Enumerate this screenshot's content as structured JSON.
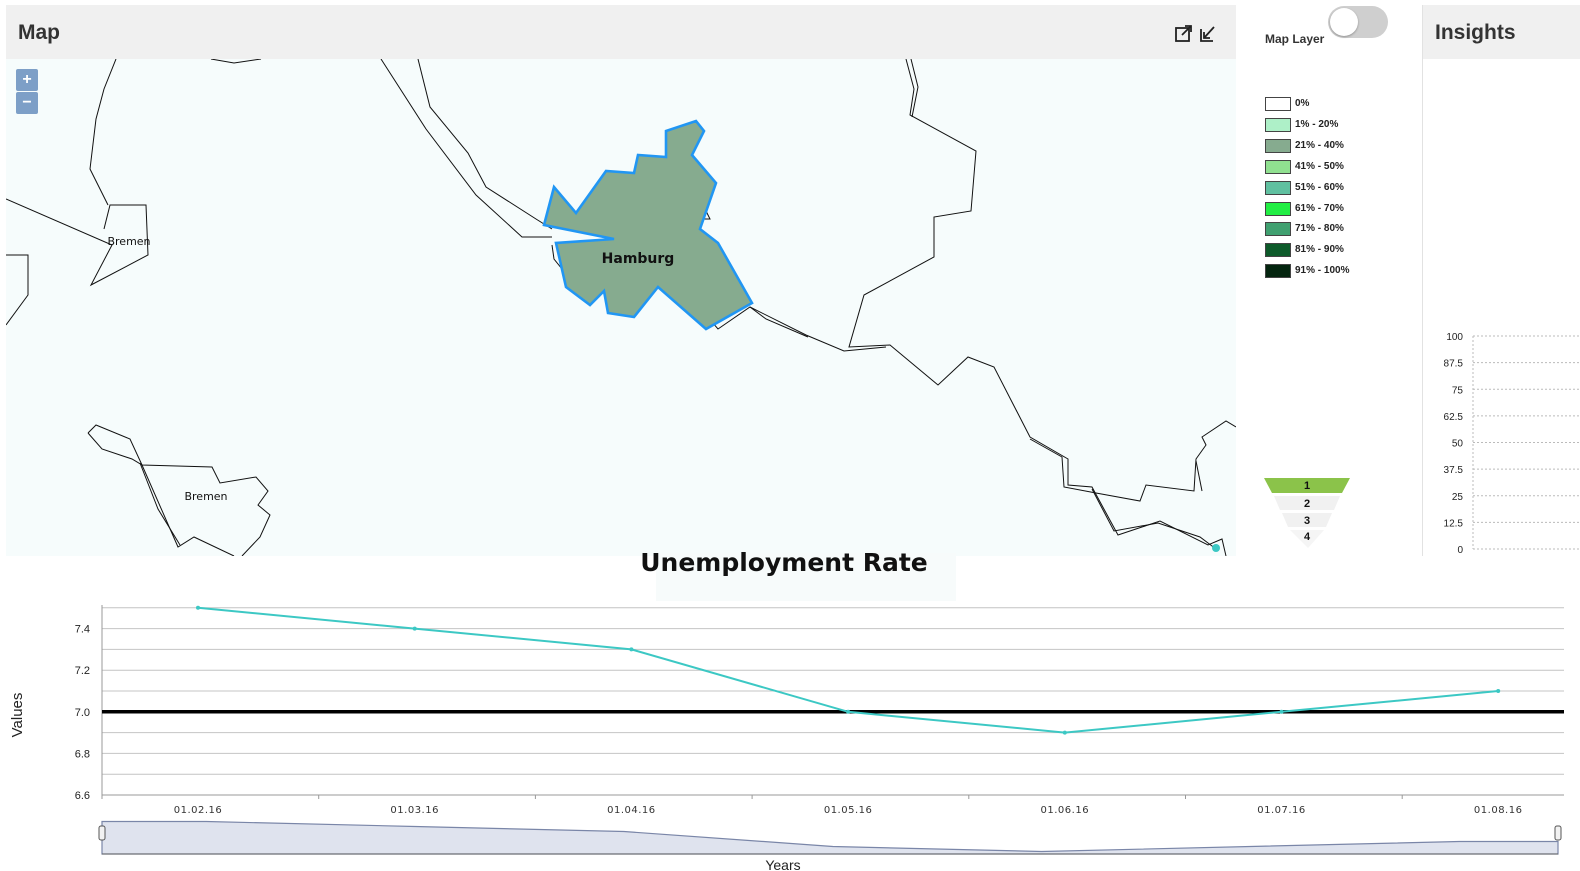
{
  "map": {
    "title": "Map",
    "icons": [
      "external-link-icon",
      "collapse-icon"
    ],
    "zoom_in_label": "+",
    "zoom_out_label": "−",
    "regions": [
      {
        "name": "Hamburg",
        "fill": "#86ab8f",
        "highlight": "#2196f3",
        "selected": true
      },
      {
        "name": "Bremen"
      },
      {
        "name": "Bremen"
      }
    ]
  },
  "legend": {
    "title": "Map Layer",
    "toggle_on": false,
    "items": [
      {
        "label": "0%",
        "color": "#ffffff"
      },
      {
        "label": "1% - 20%",
        "color": "#aef0c8"
      },
      {
        "label": "21% - 40%",
        "color": "#86ab8f"
      },
      {
        "label": "41% - 50%",
        "color": "#90e090"
      },
      {
        "label": "51% - 60%",
        "color": "#60c0a0"
      },
      {
        "label": "61% - 70%",
        "color": "#22ee44"
      },
      {
        "label": "71% - 80%",
        "color": "#40a070"
      },
      {
        "label": "81% - 90%",
        "color": "#0d5a2a"
      },
      {
        "label": "91% - 100%",
        "color": "#04250f"
      }
    ]
  },
  "funnel": {
    "levels": [
      "1",
      "2",
      "3",
      "4"
    ],
    "active_color": "#8bc34a"
  },
  "insights": {
    "title": "Insights",
    "ticks": [
      "100",
      "87.5",
      "75",
      "62.5",
      "50",
      "37.5",
      "25",
      "12.5",
      "0"
    ]
  },
  "chart_data": {
    "type": "line",
    "title": "Unemployment Rate",
    "xlabel": "Years",
    "ylabel": "Values",
    "categories": [
      "01.02.16",
      "01.03.16",
      "01.04.16",
      "01.05.16",
      "01.06.16",
      "01.07.16",
      "01.08.16"
    ],
    "y_ticks": [
      "6.6",
      "6.8",
      "7.0",
      "7.2",
      "7.4"
    ],
    "ylim": [
      6.6,
      7.5
    ],
    "reference_line": 7.0,
    "series": [
      {
        "values": [
          7.5,
          7.4,
          7.3,
          7.0,
          6.9,
          7.0,
          7.1
        ],
        "color": "#3cc8c4"
      }
    ],
    "grid": true
  }
}
